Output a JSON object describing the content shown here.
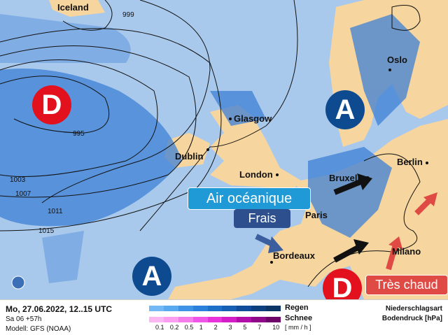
{
  "map": {
    "colors": {
      "sea": "#a9c9ec",
      "land": "#f6d59e",
      "rain": "#3d80d6",
      "low": "#e3101e",
      "high": "#0d4a8f"
    },
    "cities": [
      "Iceland",
      "Glasgow",
      "Dublin",
      "London",
      "Bruxelles",
      "Paris",
      "Bordeaux",
      "Milano",
      "Oslo",
      "Berlin"
    ],
    "isobars": [
      "999",
      "995",
      "1003",
      "1007",
      "1011",
      "1015"
    ],
    "pressure_systems": {
      "low": "D",
      "high": "A"
    },
    "callouts": {
      "oceanic_air": "Air océanique",
      "cool": "Frais",
      "very_hot": "Très chaud"
    }
  },
  "legend": {
    "datetime": "Mo, 27.06.2022, 12..15 UTC",
    "run": "Sa 06 +57h",
    "model": "Modell: GFS (NOAA)",
    "rain": "Regen",
    "snow": "Schnee",
    "unit": "[ mm / h ]",
    "ticks": [
      "0.1",
      "0.2",
      "0.5",
      "1",
      "2",
      "3",
      "5",
      "7",
      "10"
    ],
    "rain_colors": [
      "#74b8f5",
      "#5aa8f0",
      "#3f93e6",
      "#2a80da",
      "#1d6fc8",
      "#165fb5",
      "#0f4d9a",
      "#0c3f80",
      "#0b3564"
    ],
    "snow_colors": [
      "#fbb7f2",
      "#f99ef0",
      "#f47ceb",
      "#ef55e6",
      "#e833dd",
      "#d41cc9",
      "#b10ea9",
      "#8e0a88",
      "#6e066a"
    ],
    "type_label": "Niederschlagsart",
    "pressure_label": "Bodendruck [hPa]"
  }
}
